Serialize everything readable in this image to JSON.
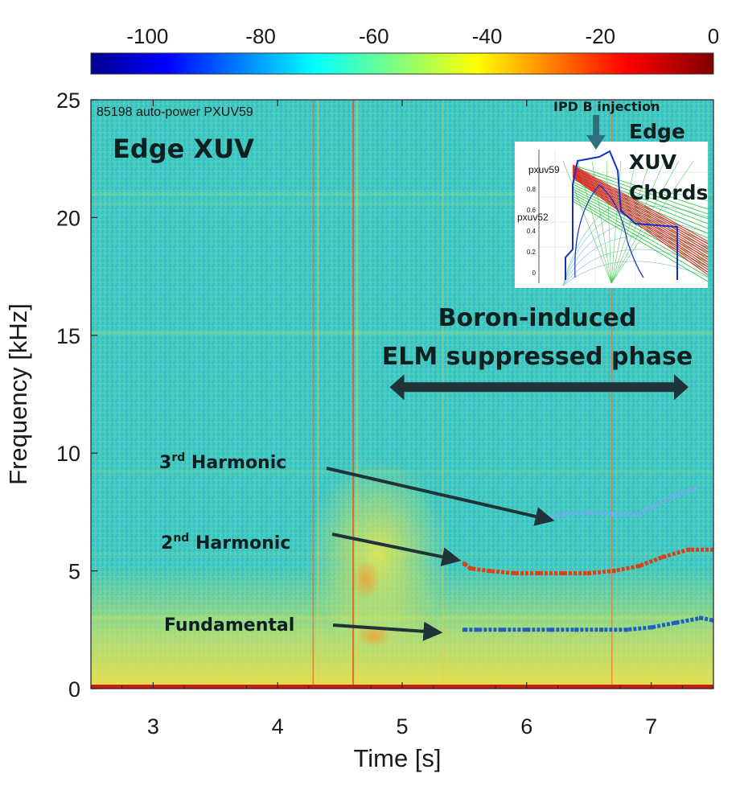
{
  "colorbar": {
    "ticks": [
      {
        "value": -100,
        "label": "-100"
      },
      {
        "value": -80,
        "label": "-80"
      },
      {
        "value": -60,
        "label": "-60"
      },
      {
        "value": -40,
        "label": "-40"
      },
      {
        "value": -20,
        "label": "-20"
      },
      {
        "value": 0,
        "label": "0"
      }
    ],
    "range": [
      -110,
      0
    ],
    "colormap": "jet"
  },
  "chart_data": {
    "type": "heatmap",
    "subtitle": "85198 auto-power PXUV59",
    "title": "Edge XUV",
    "xlabel": "Time [s]",
    "ylabel": "Frequency [kHz]",
    "xlim": [
      2.5,
      7.5
    ],
    "ylim": [
      0,
      25
    ],
    "xticks": [
      {
        "value": 3,
        "label": "3"
      },
      {
        "value": 4,
        "label": "4"
      },
      {
        "value": 5,
        "label": "5"
      },
      {
        "value": 6,
        "label": "6"
      },
      {
        "value": 7,
        "label": "7"
      }
    ],
    "yticks": [
      {
        "value": 0,
        "label": "0"
      },
      {
        "value": 5,
        "label": "5"
      },
      {
        "value": 10,
        "label": "10"
      },
      {
        "value": 15,
        "label": "15"
      },
      {
        "value": 20,
        "label": "20"
      },
      {
        "value": 25,
        "label": "25"
      }
    ],
    "series": [
      {
        "name": "Fundamental",
        "color": "#1f5fbf",
        "x": [
          5.5,
          5.6,
          5.8,
          6.0,
          6.2,
          6.4,
          6.6,
          6.8,
          7.0,
          7.2,
          7.4,
          7.5
        ],
        "y": [
          2.5,
          2.5,
          2.5,
          2.5,
          2.5,
          2.5,
          2.5,
          2.5,
          2.6,
          2.8,
          3.0,
          2.9
        ]
      },
      {
        "name": "2nd Harmonic",
        "color": "#d9401a",
        "x": [
          5.5,
          5.55,
          5.7,
          5.9,
          6.1,
          6.3,
          6.5,
          6.7,
          6.9,
          7.1,
          7.3,
          7.5
        ],
        "y": [
          5.3,
          5.1,
          5.0,
          4.9,
          4.9,
          4.9,
          4.9,
          5.0,
          5.2,
          5.6,
          5.9,
          5.9
        ]
      },
      {
        "name": "3rd Harmonic",
        "color": "#6bb0e6",
        "x": [
          6.2,
          6.3,
          6.5,
          6.7,
          6.9,
          7.0,
          7.2,
          7.35
        ],
        "y": [
          7.3,
          7.4,
          7.5,
          7.4,
          7.4,
          7.7,
          8.2,
          8.5
        ]
      }
    ],
    "annotations": {
      "phase_line1": "Boron-induced",
      "phase_line2": "ELM suppressed phase",
      "phase_range": [
        4.9,
        7.3
      ],
      "phase_y": 12.8,
      "third_harmonic": {
        "prefix": "3",
        "sup": "rd",
        "suffix": " Harmonic",
        "target_x": 6.2,
        "target_y": 7.2
      },
      "second_harmonic": {
        "prefix": "2",
        "sup": "nd",
        "suffix": " Harmonic",
        "target_x": 5.45,
        "target_y": 5.5
      },
      "fundamental": {
        "label": "Fundamental",
        "target_x": 5.3,
        "target_y": 2.4
      }
    },
    "inset": {
      "header": "IPD B injection",
      "title_lines": [
        "Edge",
        "XUV",
        "Chords"
      ],
      "chord_labels": [
        "pxuv59",
        "pxuv52"
      ],
      "yticks": [
        "0.8",
        "0.6",
        "0.4",
        "0.2",
        "0"
      ]
    }
  }
}
